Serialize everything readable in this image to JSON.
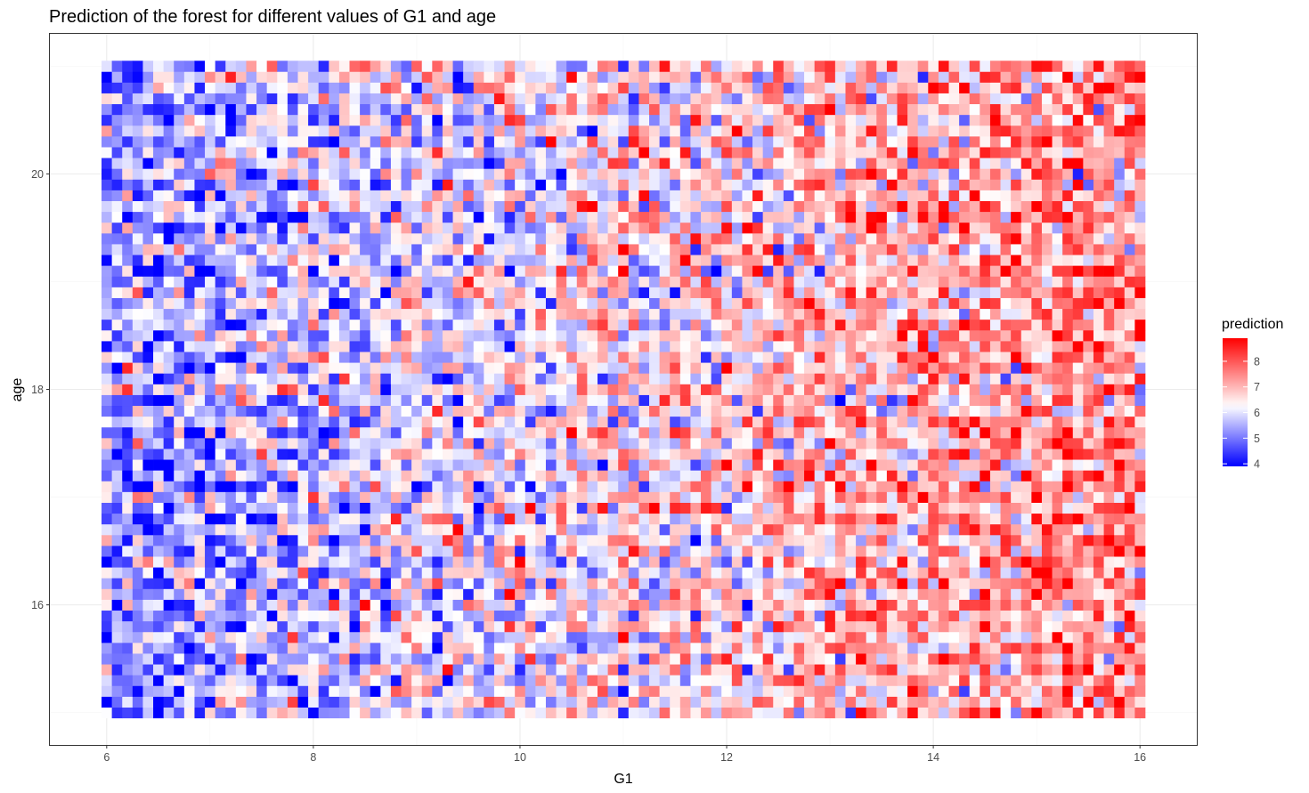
{
  "chart_data": {
    "type": "heatmap",
    "title": "Prediction of the forest for different values of G1 and age",
    "xlabel": "G1",
    "ylabel": "age",
    "x_range": [
      6,
      16
    ],
    "y_range": [
      15,
      21
    ],
    "xlim": [
      5.45,
      16.55
    ],
    "ylim": [
      14.7,
      21.3
    ],
    "x_ticks": [
      6,
      8,
      10,
      12,
      14,
      16
    ],
    "y_ticks": [
      16,
      18,
      20
    ],
    "grid": true,
    "grid_resolution": {
      "nx": 101,
      "ny": 61
    },
    "color_scale": {
      "low": "#0000ff",
      "mid": "#ffffff",
      "high": "#ff0000",
      "midpoint": 6.25,
      "limits": [
        3.9,
        8.9
      ]
    },
    "trend": {
      "description": "prediction increases with G1",
      "value_at_G1_6": 5.3,
      "value_at_G1_16": 7.5,
      "noise_sd": 1.0
    },
    "legend": {
      "title": "prediction",
      "position": "right",
      "ticks": [
        4,
        5,
        6,
        7,
        8
      ]
    },
    "colors": {
      "panel_border": "#333333",
      "grid_major": "#ebebeb",
      "grid_minor": "#f5f5f5",
      "tick_text": "#4d4d4d"
    }
  }
}
